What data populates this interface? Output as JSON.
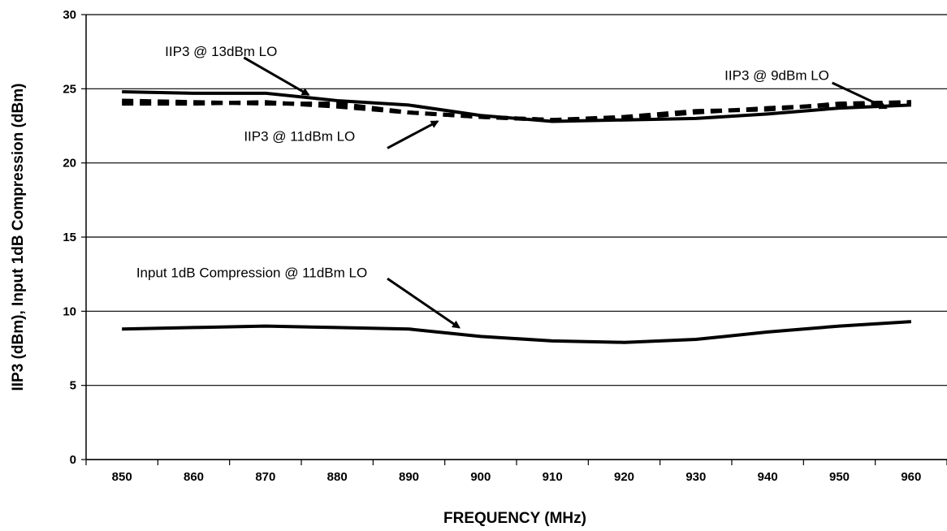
{
  "chart_data": {
    "type": "line",
    "title": "",
    "xlabel": "FREQUENCY (MHz)",
    "ylabel": "IIP3 (dBm), Input 1dB Compression (dBm)",
    "xlim": [
      845,
      965
    ],
    "ylim": [
      0,
      30
    ],
    "x_ticks": [
      850,
      860,
      870,
      880,
      890,
      900,
      910,
      920,
      930,
      940,
      950,
      960
    ],
    "y_ticks": [
      0,
      5,
      10,
      15,
      20,
      25,
      30
    ],
    "grid": "horizontal",
    "colors": {
      "lines": "#000000",
      "grid": "#000000",
      "background": "#ffffff"
    },
    "x": [
      850,
      860,
      870,
      880,
      890,
      900,
      910,
      920,
      930,
      940,
      950,
      960
    ],
    "series": [
      {
        "style": "solid",
        "values": [
          24.8,
          24.7,
          24.7,
          24.2,
          23.9,
          23.2,
          22.8,
          22.9,
          23.0,
          23.3,
          23.7,
          23.9
        ]
      },
      {
        "style": "dashed",
        "values": [
          24.0,
          24.0,
          24.1,
          23.8,
          23.4,
          23.1,
          22.9,
          23.0,
          23.4,
          23.7,
          23.9,
          24.1
        ]
      },
      {
        "style": "dashed",
        "values": [
          24.2,
          24.1,
          24.0,
          24.0,
          23.4,
          23.1,
          22.9,
          23.1,
          23.5,
          23.6,
          24.0,
          24.1
        ]
      },
      {
        "style": "solid",
        "values": [
          8.8,
          8.9,
          9.0,
          8.9,
          8.8,
          8.3,
          8.0,
          7.9,
          8.1,
          8.6,
          9.0,
          9.3
        ]
      }
    ],
    "annotations": [
      {
        "text": "IIP3 @ 13dBm LO",
        "x": 856,
        "y": 27.2,
        "arrow_from": [
          867,
          27.1
        ],
        "arrow_to": [
          876,
          24.6
        ]
      },
      {
        "text": "IIP3 @ 9dBm LO",
        "x": 934,
        "y": 25.6,
        "arrow_from": [
          949,
          25.4
        ],
        "arrow_to": [
          956.5,
          23.7
        ]
      },
      {
        "text": "IIP3 @ 11dBm LO",
        "x": 867,
        "y": 21.5,
        "arrow_from": [
          887,
          21.0
        ],
        "arrow_to": [
          894,
          22.8
        ]
      },
      {
        "text": "Input 1dB Compression @ 11dBm LO",
        "x": 852,
        "y": 12.3,
        "arrow_from": [
          887,
          12.2
        ],
        "arrow_to": [
          897,
          8.9
        ]
      }
    ]
  }
}
